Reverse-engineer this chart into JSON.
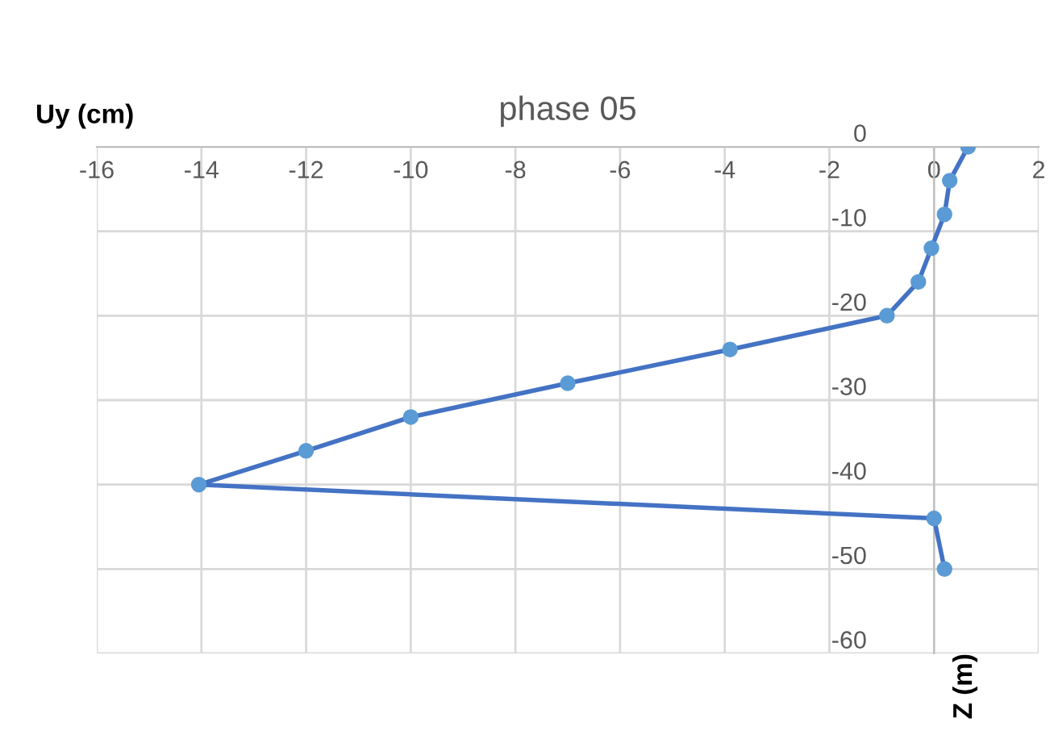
{
  "chart_data": {
    "type": "line",
    "title": "phase 05",
    "xlabel": "Uy (cm)",
    "ylabel": "Z (m)",
    "x": [
      0.65,
      0.3,
      0.2,
      -0.05,
      -0.3,
      -0.9,
      -3.9,
      -7.0,
      -10.0,
      -12.0,
      -14.05,
      0.0,
      0.2
    ],
    "series": [
      {
        "color": "#4472c4",
        "values": [
          0,
          -4,
          -8,
          -12,
          -16,
          -20,
          -24,
          -28,
          -32,
          -36,
          -40,
          -44,
          -50
        ]
      }
    ],
    "xlim": [
      -16,
      2
    ],
    "xticks": [
      -16,
      -14,
      -12,
      -10,
      -8,
      -6,
      -4,
      -2,
      0,
      2
    ],
    "ylim": [
      -60,
      0
    ],
    "yticks": [
      -60,
      -50,
      -40,
      -30,
      -20,
      -10,
      0
    ],
    "grid": true,
    "marker": "circle",
    "line_style": "solid",
    "legend": false
  }
}
